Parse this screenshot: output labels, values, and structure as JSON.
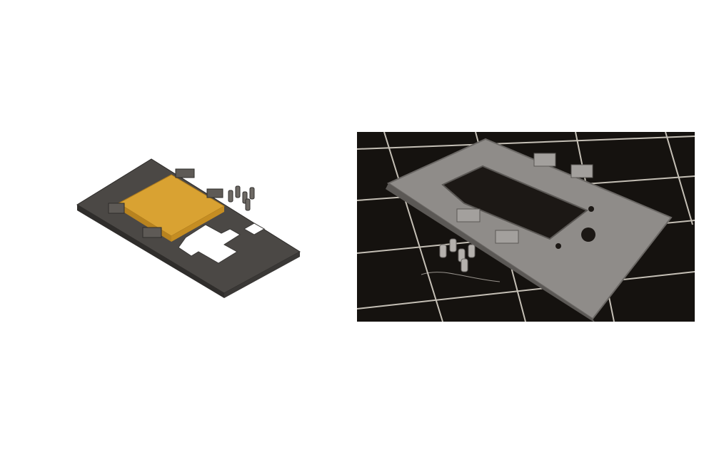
{
  "scene": {
    "left_panel": {
      "subject": "cad-render-plate-with-battery-and-pegs"
    },
    "right_panel": {
      "subject": "photo-printed-plate-on-build-sheet"
    }
  },
  "colors": {
    "background": "#ffffff",
    "plate_dark": "#4a4744",
    "battery_gold": "#d9a232",
    "printed_gray": "#8f8c89",
    "bed_black": "#15120f",
    "grid_line": "#d8d2c8"
  }
}
